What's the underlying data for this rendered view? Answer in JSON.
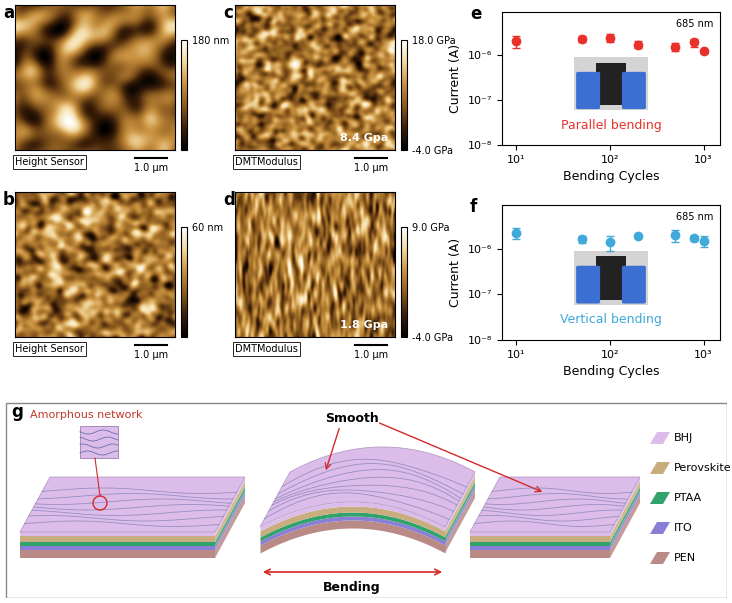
{
  "images": [
    {
      "panel": "a",
      "caption": "Height Sensor",
      "scale_bar": "1.0 μm",
      "colorbar_range": [
        0,
        180
      ],
      "colorbar_ticks": [
        {
          "value": 180,
          "label": "180 nm"
        }
      ]
    },
    {
      "panel": "b",
      "caption": "Height Sensor",
      "scale_bar": "1.0 μm",
      "colorbar_range": [
        0,
        60
      ],
      "colorbar_ticks": [
        {
          "value": 60,
          "label": "60 nm"
        }
      ]
    },
    {
      "panel": "c",
      "caption": "DMTModulus",
      "scale_bar": "1.0 μm",
      "annotation": "8.4 Gpa",
      "colorbar_range": [
        -4.0,
        18.0
      ],
      "colorbar_ticks": [
        {
          "value": 18.0,
          "label": "18.0 GPa"
        },
        {
          "value": -4.0,
          "label": "-4.0 GPa"
        }
      ]
    },
    {
      "panel": "d",
      "caption": "DMTModulus",
      "scale_bar": "1.0 μm",
      "annotation": "1.8 Gpa",
      "colorbar_range": [
        -4.0,
        9.0
      ],
      "colorbar_ticks": [
        {
          "value": 9.0,
          "label": "9.0 GPa"
        },
        {
          "value": -4.0,
          "label": "-4.0 GPa"
        }
      ]
    }
  ],
  "chart_data": [
    {
      "panel": "e",
      "type": "scatter",
      "annotation": "685 nm",
      "xlabel": "Bending Cycles",
      "ylabel": "Current (A)",
      "log": true,
      "x": [
        10,
        50,
        100,
        200,
        500,
        800,
        1000
      ],
      "xlim": [
        7,
        1500
      ],
      "xticks": [
        {
          "value": 10,
          "label": "10¹"
        },
        {
          "value": 100,
          "label": "10²"
        },
        {
          "value": 1000,
          "label": "10³"
        }
      ],
      "ylim": [
        1e-08,
        9e-06
      ],
      "yticks": [
        {
          "value": 1e-08,
          "label": "10⁻⁸"
        },
        {
          "value": 1e-07,
          "label": "10⁻⁷"
        },
        {
          "value": 1e-06,
          "label": "10⁻⁶"
        }
      ],
      "series": [
        {
          "name": "Parallel bending",
          "color": "#e8312a",
          "marker": "o",
          "values": [
            2e-06,
            2.3e-06,
            2.4e-06,
            1.7e-06,
            1.5e-06,
            1.9e-06,
            1.2e-06
          ],
          "error": [
            6e-07,
            4e-07,
            5e-07,
            3e-07,
            3e-07,
            4e-07,
            1e-07
          ]
        }
      ]
    },
    {
      "panel": "f",
      "type": "scatter",
      "annotation": "685 nm",
      "xlabel": "Bending Cycles",
      "ylabel": "Current (A)",
      "log": true,
      "x": [
        10,
        50,
        100,
        200,
        500,
        800,
        1000
      ],
      "xlim": [
        7,
        1500
      ],
      "xticks": [
        {
          "value": 10,
          "label": "10¹"
        },
        {
          "value": 100,
          "label": "10²"
        },
        {
          "value": 1000,
          "label": "10³"
        }
      ],
      "ylim": [
        1e-08,
        9e-06
      ],
      "yticks": [
        {
          "value": 1e-08,
          "label": "10⁻⁸"
        },
        {
          "value": 1e-07,
          "label": "10⁻⁷"
        },
        {
          "value": 1e-06,
          "label": "10⁻⁶"
        }
      ],
      "series": [
        {
          "name": "Vertical bending",
          "color": "#3fa9d9",
          "marker": "o",
          "values": [
            2.2e-06,
            1.6e-06,
            1.4e-06,
            1.9e-06,
            2e-06,
            1.7e-06,
            1.5e-06
          ],
          "error": [
            6e-07,
            3e-07,
            5e-07,
            1e-07,
            6e-07,
            2e-07,
            4e-07
          ]
        }
      ]
    }
  ],
  "schematic": {
    "panel": "g",
    "network_label": "Amorphous network",
    "smooth_label": "Smooth",
    "bending_label": "Bending",
    "layers": [
      {
        "name": "BHJ",
        "color": "#dcbde9"
      },
      {
        "name": "Perovskite",
        "color": "#c9ad7f"
      },
      {
        "name": "PTAA",
        "color": "#2fa36b"
      },
      {
        "name": "ITO",
        "color": "#8a7fd6"
      },
      {
        "name": "PEN",
        "color": "#b98a86"
      }
    ]
  }
}
